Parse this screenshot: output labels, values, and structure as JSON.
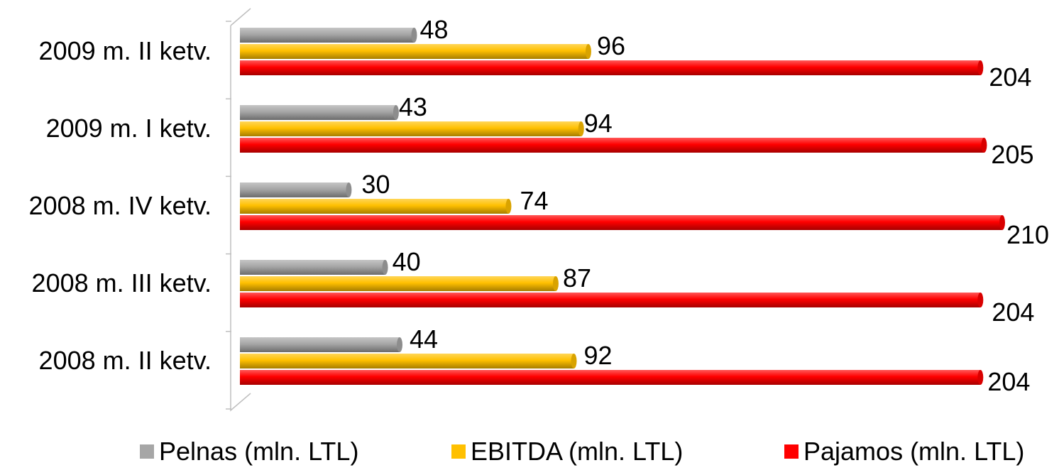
{
  "chart_data": {
    "type": "bar",
    "orientation": "horizontal",
    "categories": [
      "2009 m. II ketv.",
      "2009 m. I ketv.",
      "2008 m.  IV ketv.",
      "2008 m. III ketv.",
      "2008 m. II ketv."
    ],
    "series": [
      {
        "name": "Pelnas (mln. LTL)",
        "color": "#a6a6a6",
        "values": [
          48,
          43,
          30,
          40,
          44
        ]
      },
      {
        "name": "EBITDA (mln. LTL)",
        "color": "#ffc000",
        "values": [
          96,
          94,
          74,
          87,
          92
        ]
      },
      {
        "name": "Pajamos (mln. LTL)",
        "color": "#ff0000",
        "values": [
          204,
          205,
          210,
          204,
          204
        ]
      }
    ],
    "xlim": [
      0,
      210
    ],
    "grid": false,
    "legend_position": "bottom",
    "data_labels": true
  }
}
